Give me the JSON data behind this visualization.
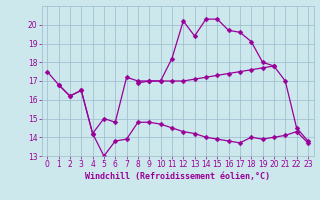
{
  "x": [
    0,
    1,
    2,
    3,
    4,
    5,
    6,
    7,
    8,
    9,
    10,
    11,
    12,
    13,
    14,
    15,
    16,
    17,
    18,
    19,
    20,
    21,
    22,
    23
  ],
  "line1": [
    17.5,
    16.8,
    16.2,
    16.5,
    14.2,
    15.0,
    14.8,
    17.2,
    17.0,
    17.0,
    17.0,
    18.2,
    20.2,
    19.4,
    20.3,
    20.3,
    19.7,
    19.6,
    19.1,
    18.0,
    17.8,
    17.0,
    14.5,
    13.8
  ],
  "line2": [
    null,
    16.8,
    16.2,
    16.5,
    14.2,
    13.0,
    13.8,
    13.9,
    14.8,
    14.8,
    14.7,
    14.5,
    14.3,
    14.2,
    14.0,
    13.9,
    13.8,
    13.7,
    14.0,
    13.9,
    14.0,
    14.1,
    14.3,
    13.7
  ],
  "line3": [
    null,
    null,
    null,
    null,
    null,
    null,
    null,
    null,
    16.9,
    17.0,
    17.0,
    17.0,
    17.0,
    17.1,
    17.2,
    17.3,
    17.4,
    17.5,
    17.6,
    17.7,
    17.8,
    null,
    null,
    null
  ],
  "background_color": "#cce8ec",
  "line_color": "#990099",
  "grid_color": "#99bbcc",
  "xlabel": "Windchill (Refroidissement éolien,°C)",
  "ylim": [
    13,
    21
  ],
  "xlim": [
    -0.5,
    23.5
  ],
  "yticks": [
    13,
    14,
    15,
    16,
    17,
    18,
    19,
    20
  ],
  "xticks": [
    0,
    1,
    2,
    3,
    4,
    5,
    6,
    7,
    8,
    9,
    10,
    11,
    12,
    13,
    14,
    15,
    16,
    17,
    18,
    19,
    20,
    21,
    22,
    23
  ]
}
